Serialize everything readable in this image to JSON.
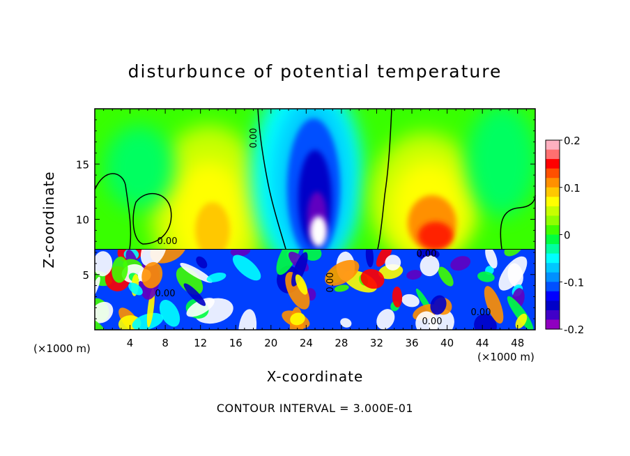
{
  "chart_data": {
    "type": "heatmap",
    "title": "disturbunce of potential temperature",
    "xlabel": "X-coordinate",
    "ylabel": "Z-coordinate",
    "x_unit": "(×1000 m)",
    "xlim": [
      0,
      50
    ],
    "ylim": [
      0,
      20
    ],
    "x_ticks": [
      4,
      8,
      12,
      16,
      20,
      24,
      28,
      32,
      36,
      40,
      44,
      48
    ],
    "y_ticks": [
      5,
      10,
      15
    ],
    "colorbar": {
      "range": [
        -0.2,
        0.2
      ],
      "ticks": [
        "0.2",
        "0.1",
        "0",
        "-0.1",
        "-0.2"
      ],
      "colors": [
        "#ffb0c0",
        "#ff7070",
        "#ff0000",
        "#ff5000",
        "#ff9000",
        "#ffc800",
        "#ffff00",
        "#c8ff00",
        "#90ff00",
        "#40ff00",
        "#00ff40",
        "#00ffa0",
        "#00ffff",
        "#00c8ff",
        "#0090ff",
        "#0050ff",
        "#0000ff",
        "#0000c8",
        "#4000c8",
        "#9000c0"
      ]
    },
    "contour_labels": [
      "0.00",
      "0.00",
      "0.00",
      "0.00",
      "0.00",
      "0.00",
      "0.00"
    ],
    "contour_interval_text": "CONTOUR INTERVAL = 3.000E-01"
  }
}
